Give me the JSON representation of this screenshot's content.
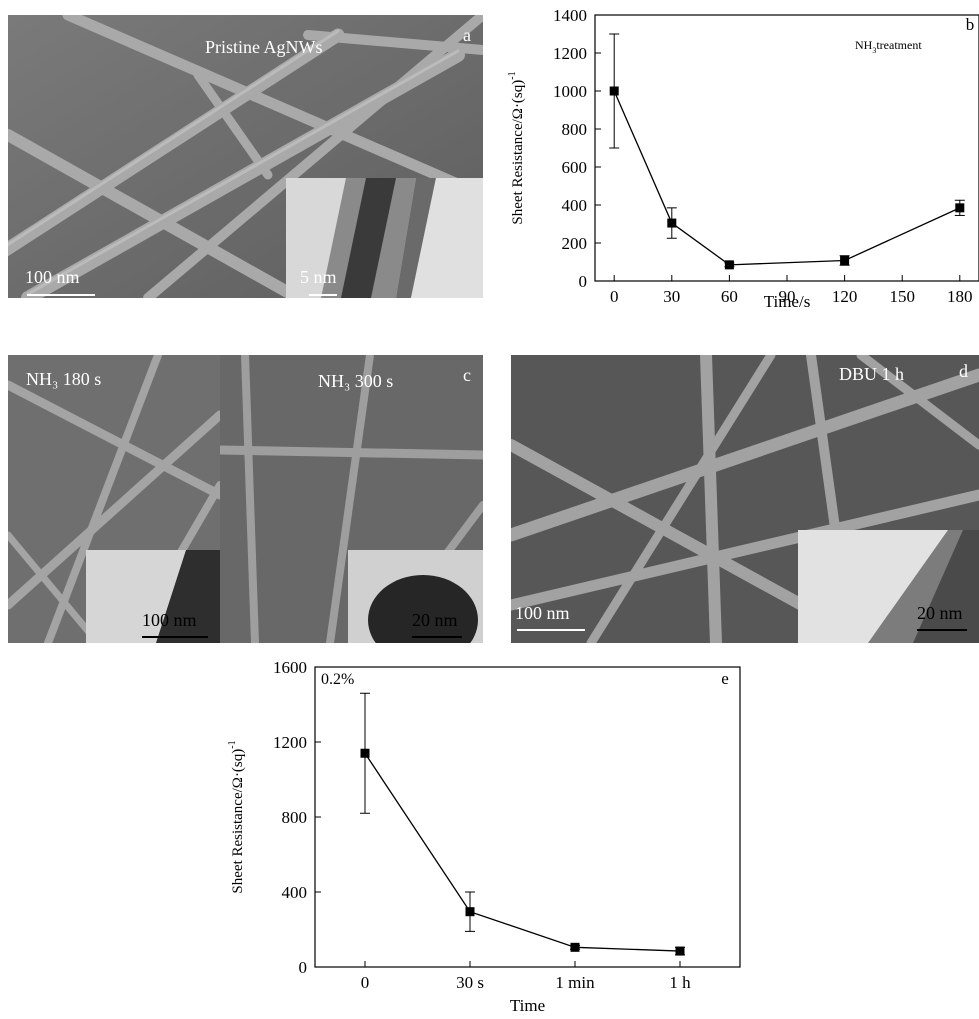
{
  "panel_a": {
    "title": "Pristine AgNWs",
    "letter": "a",
    "scale_main": "100 nm",
    "scale_inset": "5 nm"
  },
  "panel_c": {
    "label_left": "NH₃ 180 s",
    "label_right": "NH₃ 300 s",
    "letter": "c",
    "scale_left": "100 nm",
    "scale_right": "20 nm"
  },
  "panel_d": {
    "label": "DBU 1 h",
    "letter": "d",
    "scale_main": "100 nm",
    "scale_inset": "20 nm"
  },
  "chart_data": [
    {
      "panel": "b",
      "type": "line",
      "annotation": "NH3treatment",
      "xlabel": "Time/s",
      "ylabel": "Sheet Resistance/Ω·(sq)",
      "ylabel_superscript": "-1",
      "x": [
        0,
        30,
        60,
        120,
        180
      ],
      "y": [
        1000,
        305,
        85,
        108,
        385
      ],
      "y_err": [
        300,
        80,
        10,
        25,
        40
      ],
      "xlim": [
        -10,
        190
      ],
      "ylim": [
        0,
        1400
      ],
      "xticks": [
        0,
        30,
        60,
        90,
        120,
        150,
        180
      ],
      "yticks": [
        0,
        200,
        400,
        600,
        800,
        1000,
        1200,
        1400
      ],
      "marker": "square",
      "color": "#000000"
    },
    {
      "panel": "e",
      "type": "line",
      "annotation": "0.2%",
      "xlabel": "Time",
      "ylabel": "Sheet Resistance/Ω·(sq)",
      "ylabel_superscript": "-1",
      "categories": [
        "0",
        "30 s",
        "1 min",
        "1 h"
      ],
      "y": [
        1140,
        295,
        105,
        85
      ],
      "y_err": [
        320,
        105,
        10,
        20
      ],
      "ylim": [
        0,
        1600
      ],
      "yticks": [
        0,
        400,
        800,
        1200,
        1600
      ],
      "marker": "square",
      "color": "#000000"
    }
  ]
}
